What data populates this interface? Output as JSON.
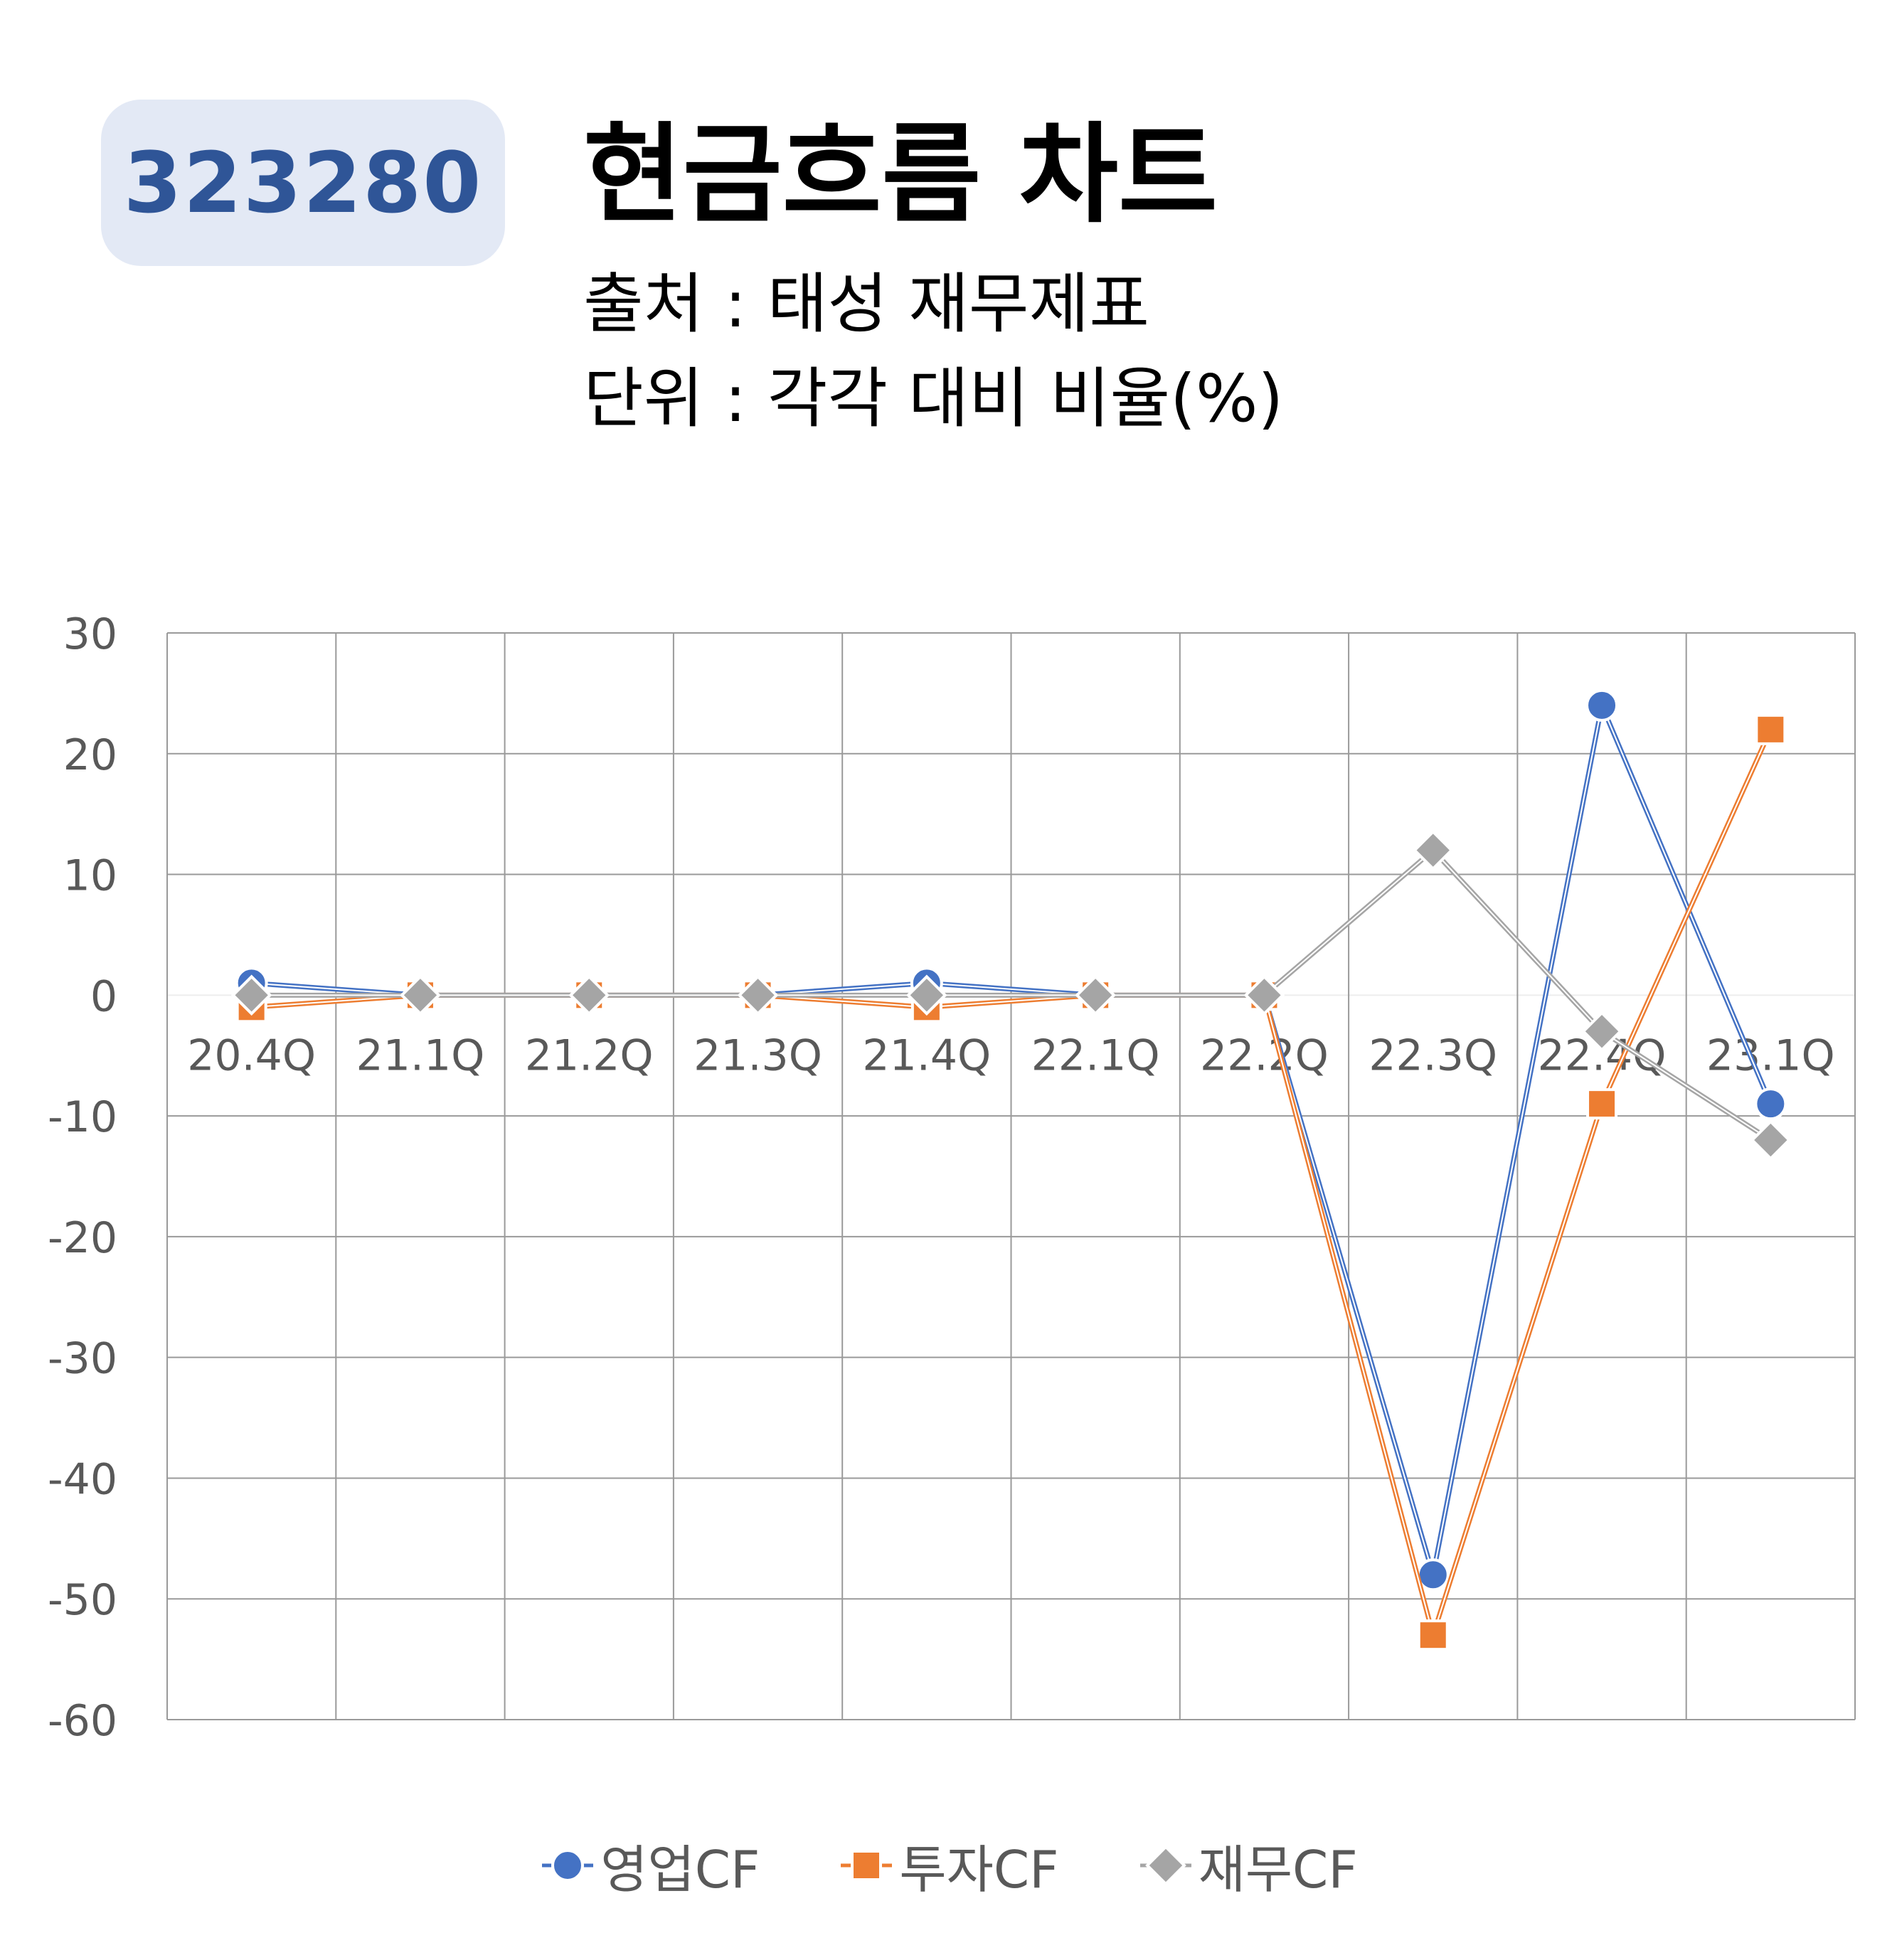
{
  "header": {
    "ticker": "323280",
    "title": "현금흐름 차트",
    "source": "출처 : 태성 재무제표",
    "unit": "단위 : 각각 대비 비율(%)"
  },
  "chart_data": {
    "type": "line",
    "categories": [
      "20.4Q",
      "21.1Q",
      "21.2Q",
      "21.3Q",
      "21.4Q",
      "22.1Q",
      "22.2Q",
      "22.3Q",
      "22.4Q",
      "23.1Q"
    ],
    "ylim": [
      -60,
      30
    ],
    "yticks": [
      30,
      20,
      10,
      0,
      -10,
      -20,
      -30,
      -40,
      -50,
      -60
    ],
    "grid": true,
    "legend_position": "bottom",
    "series": [
      {
        "name": "영업CF",
        "color": "#4472c4",
        "marker": "circle",
        "values": [
          1,
          0,
          0,
          0,
          1,
          0,
          0,
          -48,
          24,
          -9
        ]
      },
      {
        "name": "투자CF",
        "color": "#ed7d31",
        "marker": "square",
        "values": [
          -1,
          0,
          0,
          0,
          -1,
          0,
          0,
          -53,
          -9,
          22
        ]
      },
      {
        "name": "재무CF",
        "color": "#a5a5a5",
        "marker": "diamond",
        "values": [
          0,
          0,
          0,
          0,
          0,
          0,
          0,
          12,
          -3,
          -12
        ]
      }
    ]
  }
}
